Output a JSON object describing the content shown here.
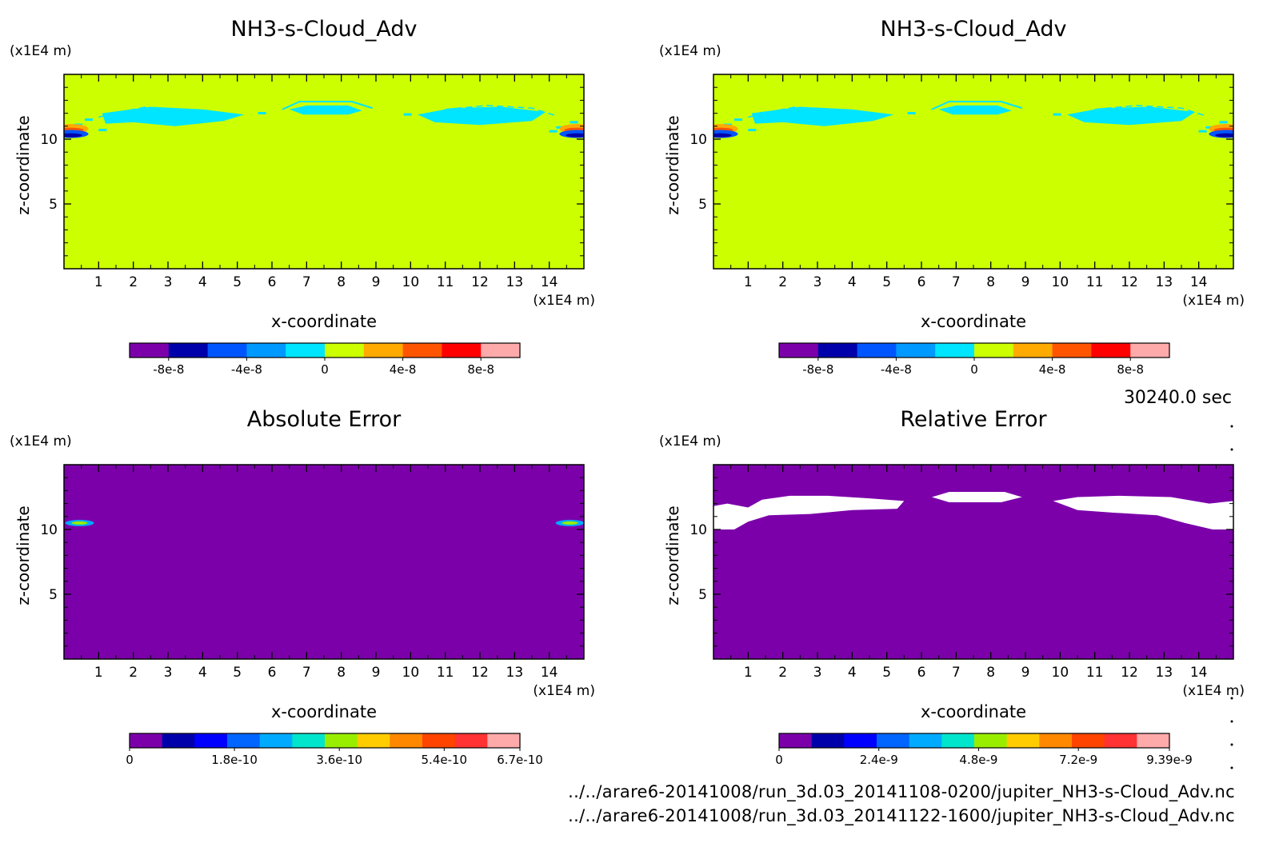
{
  "colors": {
    "background": "#ffffff",
    "field_main": "#ccff00",
    "field_error": "#7b00aa",
    "blank": "#ffffff",
    "palette_main": [
      "#7b00aa",
      "#0000aa",
      "#0055ff",
      "#0099ff",
      "#00e5ff",
      "#ccff00",
      "#ffaa00",
      "#ff5500",
      "#ff0000",
      "#ffaaaa"
    ],
    "palette_abs": [
      "#7b00aa",
      "#0000aa",
      "#0000ff",
      "#0066ff",
      "#00aaff",
      "#00e5cc",
      "#99ee00",
      "#ffcc00",
      "#ff8800",
      "#ff4400",
      "#ff3333",
      "#ffaaaa"
    ],
    "palette_rel": [
      "#7b00aa",
      "#0000aa",
      "#0000ff",
      "#0066ff",
      "#00aaff",
      "#00e5cc",
      "#99ee00",
      "#ffcc00",
      "#ff8800",
      "#ff4400",
      "#ff3333",
      "#ffaaaa"
    ]
  },
  "time_label": "30240.0 sec",
  "footer": {
    "file1": "../../arare6-20141008/run_3d.03_20141108-0200/jupiter_NH3-s-Cloud_Adv.nc",
    "file2": "../../arare6-20141008/run_3d.03_20141122-1600/jupiter_NH3-s-Cloud_Adv.nc"
  },
  "chart_data": [
    {
      "type": "heatmap",
      "title": "NH3-s-Cloud_Adv",
      "xlabel": "x-coordinate",
      "ylabel": "z-coordinate",
      "x_unit": "(x1E4 m)",
      "y_unit": "(x1E4 m)",
      "xlim": [
        0,
        15
      ],
      "ylim": [
        0,
        15
      ],
      "xticks": [
        1,
        2,
        3,
        4,
        5,
        6,
        7,
        8,
        9,
        10,
        11,
        12,
        13,
        14
      ],
      "yticks": [
        5,
        10
      ],
      "field": "main",
      "colorbar": {
        "ticks": [
          {
            "value": -8e-08,
            "label": "-8e-8"
          },
          {
            "value": -4e-08,
            "label": "-4e-8"
          },
          {
            "value": 0,
            "label": "0"
          },
          {
            "value": 4e-08,
            "label": "4e-8"
          },
          {
            "value": 8e-08,
            "label": "8e-8"
          }
        ],
        "range": [
          -1e-07,
          1e-07
        ]
      }
    },
    {
      "type": "heatmap",
      "title": "NH3-s-Cloud_Adv",
      "xlabel": "x-coordinate",
      "ylabel": "z-coordinate",
      "x_unit": "(x1E4 m)",
      "y_unit": "(x1E4 m)",
      "xlim": [
        0,
        15
      ],
      "ylim": [
        0,
        15
      ],
      "xticks": [
        1,
        2,
        3,
        4,
        5,
        6,
        7,
        8,
        9,
        10,
        11,
        12,
        13,
        14
      ],
      "yticks": [
        5,
        10
      ],
      "field": "main",
      "colorbar": {
        "ticks": [
          {
            "value": -8e-08,
            "label": "-8e-8"
          },
          {
            "value": -4e-08,
            "label": "-4e-8"
          },
          {
            "value": 0,
            "label": "0"
          },
          {
            "value": 4e-08,
            "label": "4e-8"
          },
          {
            "value": 8e-08,
            "label": "8e-8"
          }
        ],
        "range": [
          -1e-07,
          1e-07
        ]
      }
    },
    {
      "type": "heatmap",
      "title": "Absolute Error",
      "xlabel": "x-coordinate",
      "ylabel": "z-coordinate",
      "x_unit": "(x1E4 m)",
      "y_unit": "(x1E4 m)",
      "xlim": [
        0,
        15
      ],
      "ylim": [
        0,
        15
      ],
      "xticks": [
        1,
        2,
        3,
        4,
        5,
        6,
        7,
        8,
        9,
        10,
        11,
        12,
        13,
        14
      ],
      "yticks": [
        5,
        10
      ],
      "field": "abs",
      "colorbar": {
        "ticks": [
          {
            "value": 0,
            "label": "0"
          },
          {
            "value": 1.8e-10,
            "label": "1.8e-10"
          },
          {
            "value": 3.6e-10,
            "label": "3.6e-10"
          },
          {
            "value": 5.4e-10,
            "label": "5.4e-10"
          },
          {
            "value": 6.7e-10,
            "label": "6.7e-10"
          }
        ],
        "range": [
          0,
          6.7e-10
        ]
      }
    },
    {
      "type": "heatmap",
      "title": "Relative Error",
      "xlabel": "x-coordinate",
      "ylabel": "z-coordinate",
      "x_unit": "(x1E4 m)",
      "y_unit": "(x1E4 m)",
      "xlim": [
        0,
        15
      ],
      "ylim": [
        0,
        15
      ],
      "xticks": [
        1,
        2,
        3,
        4,
        5,
        6,
        7,
        8,
        9,
        10,
        11,
        12,
        13,
        14
      ],
      "yticks": [
        5,
        10
      ],
      "field": "rel",
      "colorbar": {
        "ticks": [
          {
            "value": 0,
            "label": "0"
          },
          {
            "value": 2.4e-09,
            "label": "2.4e-9"
          },
          {
            "value": 4.8e-09,
            "label": "4.8e-9"
          },
          {
            "value": 7.2e-09,
            "label": "7.2e-9"
          },
          {
            "value": 9.39e-09,
            "label": "9.39e-9"
          }
        ],
        "range": [
          0,
          9.39e-09
        ]
      }
    }
  ]
}
